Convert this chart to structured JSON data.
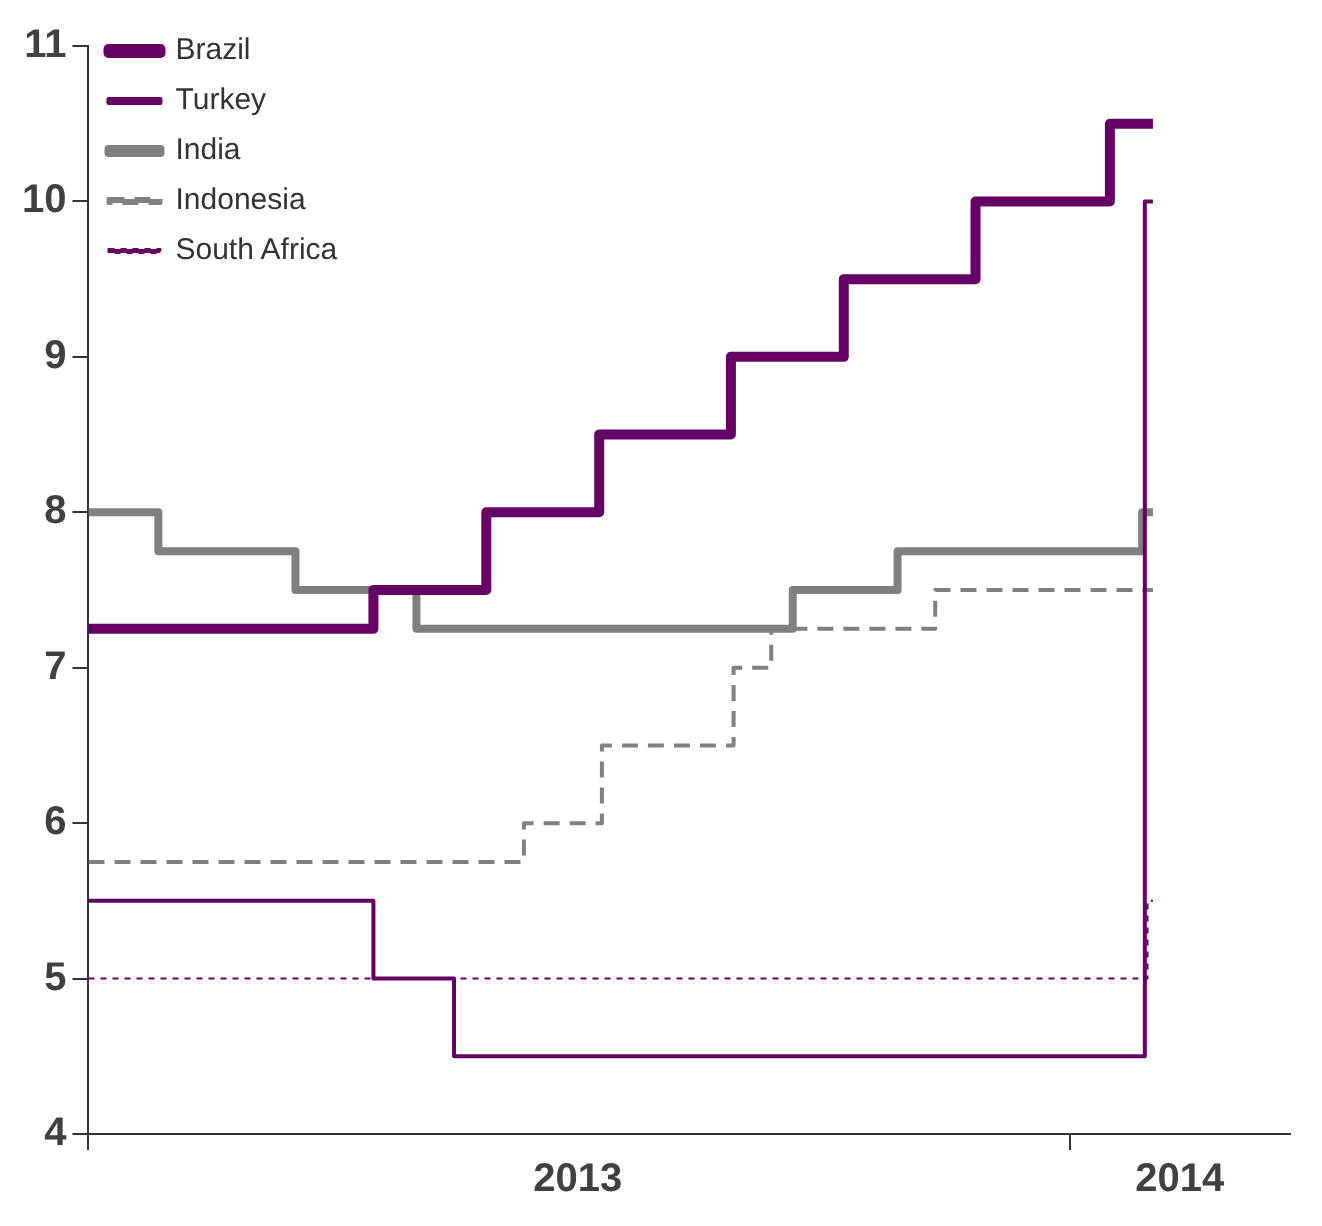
{
  "chart_data": {
    "type": "step",
    "xlim": [
      "2013-01-01",
      "2014-03-24"
    ],
    "xticks": [
      {
        "value": "2013-01-01",
        "label": null
      },
      {
        "value": "2013-07-02",
        "label": "2013"
      },
      {
        "value": "2014-01-01",
        "label": null
      },
      {
        "value": "2014-02-11",
        "label": "2014"
      }
    ],
    "ylim": [
      4,
      11
    ],
    "yticks": [
      4,
      5,
      6,
      7,
      8,
      9,
      10,
      11
    ],
    "grid": false,
    "legend": "top left",
    "series": [
      {
        "name": "Brazil",
        "color": "#660066",
        "line_style": "solid",
        "x": [
          "2013-01-01",
          "2013-04-17",
          "2013-05-29",
          "2013-07-10",
          "2013-08-28",
          "2013-10-09",
          "2013-11-27",
          "2014-01-16",
          "2014-02-01"
        ],
        "values": [
          7.25,
          7.5,
          8,
          8.5,
          9,
          9.5,
          10,
          10.5,
          10.5
        ]
      },
      {
        "name": "Turkey",
        "color": "#660066",
        "line_style": "solid",
        "x": [
          "2013-01-01",
          "2013-04-17",
          "2013-05-17",
          "2014-01-29",
          "2014-02-01"
        ],
        "values": [
          5.5,
          5,
          4.5,
          10,
          10
        ]
      },
      {
        "name": "India",
        "color": "#808080",
        "line_style": "solid",
        "x": [
          "2013-01-01",
          "2013-01-27",
          "2013-03-19",
          "2013-05-03",
          "2013-09-20",
          "2013-10-29",
          "2014-01-28",
          "2014-02-01"
        ],
        "values": [
          8,
          7.75,
          7.5,
          7.25,
          7.5,
          7.75,
          8,
          8
        ]
      },
      {
        "name": "Indonesia",
        "color": "#808080",
        "line_style": "dashed",
        "x": [
          "2013-01-01",
          "2013-06-12",
          "2013-07-11",
          "2013-08-29",
          "2013-09-12",
          "2013-11-12",
          "2014-02-01"
        ],
        "values": [
          5.75,
          6,
          6.5,
          7,
          7.25,
          7.5,
          7.5
        ]
      },
      {
        "name": "South Africa",
        "color": "#660066",
        "line_style": "dotted",
        "x": [
          "2013-01-01",
          "2014-01-30",
          "2014-02-01"
        ],
        "values": [
          5,
          5.5,
          5.5
        ]
      }
    ]
  }
}
